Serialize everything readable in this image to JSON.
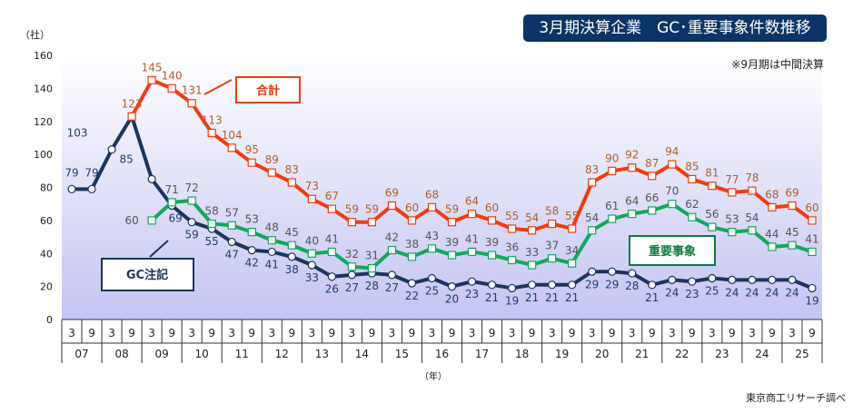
{
  "chart_data": {
    "type": "line",
    "title": "3月期決算企業　GC･重要事象件数推移",
    "note": "※9月期は中間決算",
    "source": "東京商工リサーチ調べ",
    "ylabel": "（社）",
    "xlabel": "（年）",
    "ylim": [
      0,
      160
    ],
    "yticks": [
      0,
      20,
      40,
      60,
      80,
      100,
      120,
      140,
      160
    ],
    "months": [
      "3",
      "9"
    ],
    "years": [
      "07",
      "08",
      "09",
      "10",
      "11",
      "12",
      "13",
      "14",
      "15",
      "16",
      "17",
      "18",
      "19",
      "20",
      "21",
      "22",
      "23",
      "24",
      "25"
    ],
    "grid": false,
    "series": [
      {
        "name": "合計",
        "color": "#f03c0f",
        "label_color": "#b0602a",
        "values": [
          null,
          null,
          null,
          123,
          145,
          140,
          131,
          113,
          104,
          95,
          89,
          83,
          73,
          67,
          59,
          59,
          69,
          60,
          68,
          59,
          64,
          60,
          55,
          54,
          58,
          55,
          83,
          90,
          92,
          87,
          94,
          85,
          81,
          77,
          78,
          68,
          69,
          60
        ]
      },
      {
        "name": "重要事象",
        "color": "#14a85a",
        "label_color": "#555555",
        "values": [
          null,
          null,
          null,
          null,
          60,
          71,
          72,
          58,
          57,
          53,
          48,
          45,
          40,
          41,
          32,
          31,
          42,
          38,
          43,
          39,
          41,
          39,
          36,
          33,
          37,
          34,
          54,
          61,
          64,
          66,
          70,
          62,
          56,
          53,
          54,
          44,
          45,
          41
        ]
      },
      {
        "name": "GC注記",
        "color": "#1b355c",
        "label_color": "#1f3c70",
        "values": [
          79,
          79,
          103,
          123,
          85,
          69,
          59,
          55,
          47,
          42,
          41,
          38,
          33,
          26,
          27,
          28,
          27,
          22,
          25,
          20,
          23,
          21,
          19,
          21,
          21,
          21,
          29,
          29,
          28,
          21,
          24,
          23,
          25,
          24,
          24,
          24,
          24,
          19
        ]
      }
    ]
  }
}
